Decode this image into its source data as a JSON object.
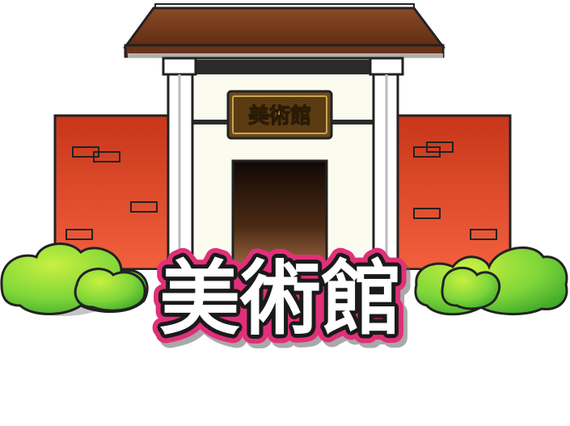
{
  "building": {
    "plaque_label": "美術館",
    "title": "美術館"
  },
  "colors": {
    "roof": "#7a3b1e",
    "wall_brick_top": "#c8361a",
    "wall_brick_bottom": "#f05a3a",
    "facade": "#fbfbef",
    "plaque_bg": "#6b4a1c",
    "plaque_text": "#f5d66b",
    "door_top": "#1a0d05",
    "door_bottom": "#8a5a3a",
    "bush": "#5bc43a",
    "title_outline": "#e0307a",
    "title_fill": "#ffffff"
  }
}
